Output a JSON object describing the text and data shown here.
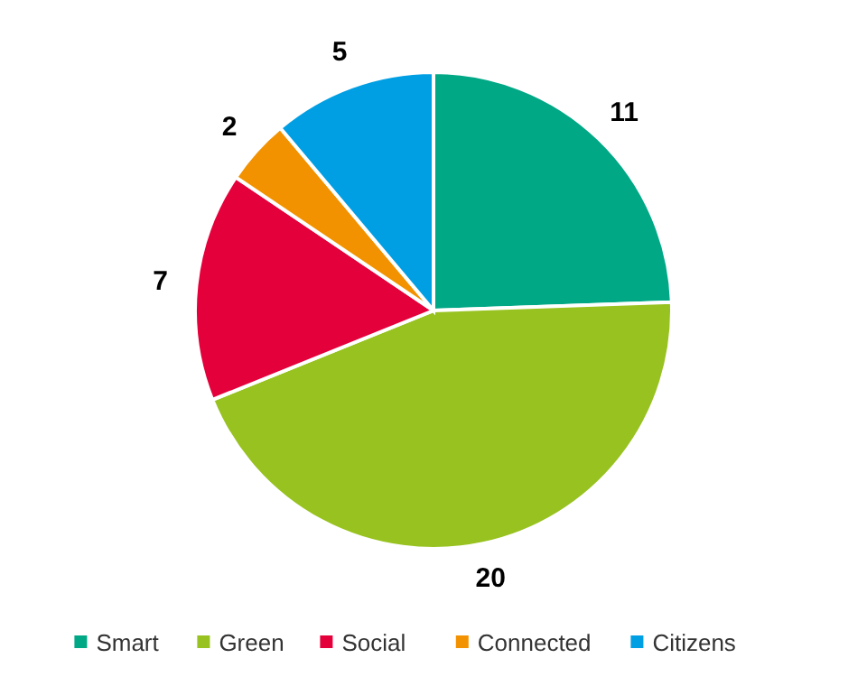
{
  "chart_data": {
    "type": "pie",
    "categories": [
      "Smart",
      "Green",
      "Social",
      "Connected",
      "Citizens"
    ],
    "values": [
      11,
      20,
      7,
      2,
      5
    ],
    "colors": [
      "#00a886",
      "#97c21f",
      "#e4003b",
      "#f39200",
      "#009fe3"
    ],
    "data_labels": true,
    "legend": "bottom"
  }
}
